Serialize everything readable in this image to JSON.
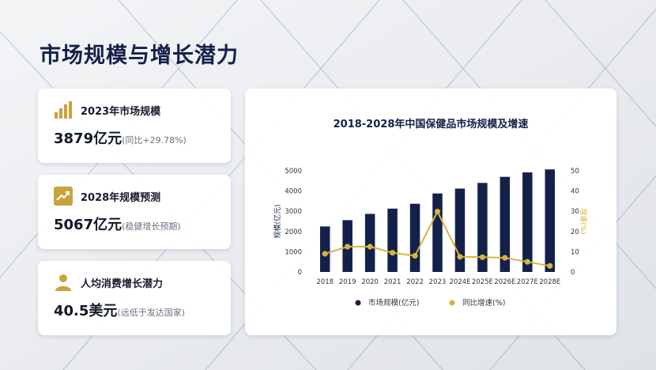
{
  "page": {
    "title": "市场规模与增长潜力"
  },
  "cards": [
    {
      "icon": "bar-chart-icon",
      "label": "2023年市场规模",
      "value": "3879亿元",
      "note": "(同比+29.78%)"
    },
    {
      "icon": "trend-up-icon",
      "label": "2028年规模预测",
      "value": "5067亿元",
      "note": "(稳健增长预期)"
    },
    {
      "icon": "person-icon",
      "label": "人均消费增长潜力",
      "value": "40.5美元",
      "note": "(远低于发达国家)"
    }
  ],
  "colors": {
    "bar": "#13214a",
    "line": "#d8b43c",
    "icon_bg": "#c9a33a",
    "title": "#14204a"
  },
  "chart_data": {
    "type": "bar",
    "title": "2018-2028年中国保健品市场规模及增速",
    "xlabel": "",
    "ylabel": "规模(亿元)",
    "y2label": "增速(%)",
    "categories": [
      "2018",
      "2019",
      "2020",
      "2021",
      "2022",
      "2023",
      "2024E",
      "2025E",
      "2026E",
      "2027E",
      "2028E"
    ],
    "yticks": [
      0,
      1000,
      2000,
      3000,
      4000,
      5000
    ],
    "y2ticks": [
      0,
      10,
      20,
      30,
      40,
      50
    ],
    "ylim": [
      0,
      5000
    ],
    "y2lim": [
      0,
      50
    ],
    "grid": false,
    "legend_position": "bottom",
    "series": [
      {
        "name": "市场规模(亿元)",
        "type": "bar",
        "axis": "left",
        "values": [
          2250,
          2560,
          2870,
          3130,
          3370,
          3879,
          4120,
          4400,
          4700,
          4920,
          5067
        ]
      },
      {
        "name": "同比增速(%)",
        "type": "line",
        "axis": "right",
        "values": [
          9,
          12.5,
          12.5,
          9.5,
          8,
          29.78,
          7.5,
          7.3,
          7,
          5,
          3
        ]
      }
    ]
  }
}
